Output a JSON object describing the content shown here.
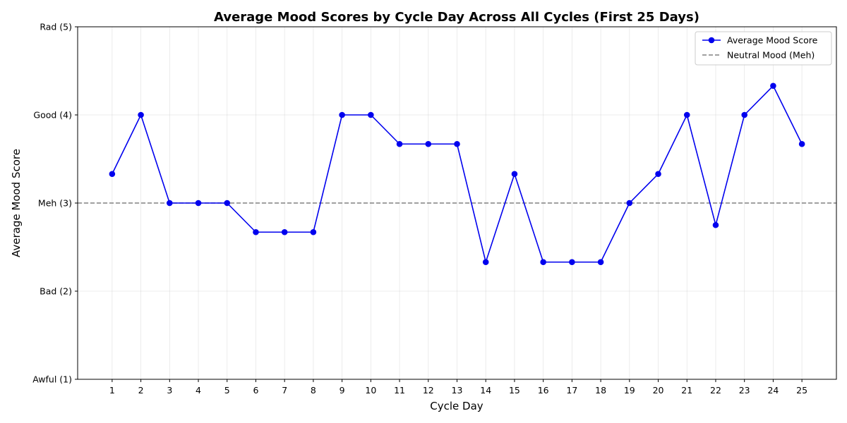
{
  "chart_data": {
    "type": "line",
    "title": "Average Mood Scores by Cycle Day Across All Cycles (First 25 Days)",
    "xlabel": "Cycle Day",
    "ylabel": "Average Mood Score",
    "x": [
      1,
      2,
      3,
      4,
      5,
      6,
      7,
      8,
      9,
      10,
      11,
      12,
      13,
      14,
      15,
      16,
      17,
      18,
      19,
      20,
      21,
      22,
      23,
      24,
      25
    ],
    "x_tick_labels": [
      "1",
      "2",
      "3",
      "4",
      "5",
      "6",
      "7",
      "8",
      "9",
      "10",
      "11",
      "12",
      "13",
      "14",
      "15",
      "16",
      "17",
      "18",
      "19",
      "20",
      "21",
      "22",
      "23",
      "24",
      "25"
    ],
    "xlim": [
      -0.2,
      26.2
    ],
    "ylim": [
      1,
      5
    ],
    "y_ticks": [
      1,
      2,
      3,
      4,
      5
    ],
    "y_tick_labels": [
      "Awful (1)",
      "Bad (2)",
      "Meh (3)",
      "Good (4)",
      "Rad (5)"
    ],
    "grid": true,
    "legend_position": "top-right",
    "series": [
      {
        "name": "Average Mood Score",
        "color": "#0000ee",
        "marker": "circle",
        "values": [
          3.33,
          4.0,
          3.0,
          3.0,
          3.0,
          2.67,
          2.67,
          2.67,
          4.0,
          4.0,
          3.67,
          3.67,
          3.67,
          2.33,
          3.33,
          2.33,
          2.33,
          2.33,
          3.0,
          3.33,
          4.0,
          2.75,
          4.0,
          4.33,
          3.67
        ]
      }
    ],
    "reference_lines": [
      {
        "name": "Neutral Mood (Meh)",
        "y": 3,
        "style": "dashed",
        "color": "#808080"
      }
    ]
  }
}
